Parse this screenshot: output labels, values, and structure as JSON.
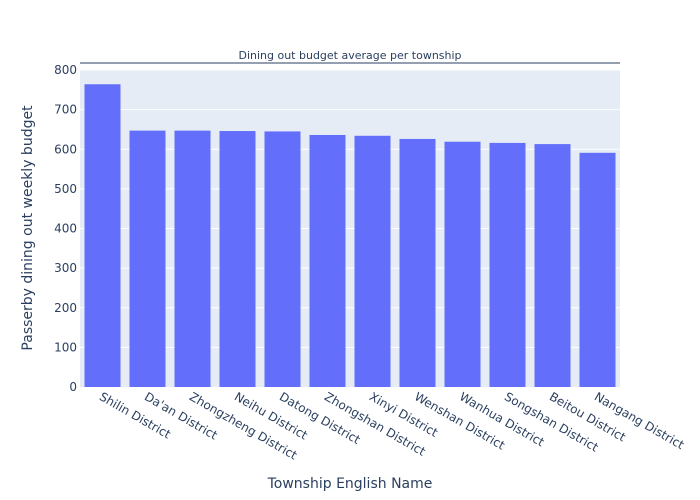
{
  "chart_data": {
    "type": "bar",
    "title": "Dining out budget average per township",
    "xlabel": "Township English Name",
    "ylabel": "Passerby dining out weekly budget",
    "categories": [
      "Shilin District",
      "Da'an District",
      "Zhongzheng District",
      "Neihu District",
      "Datong District",
      "Zhongshan District",
      "Xinyi District",
      "Wenshan District",
      "Wanhua District",
      "Songshan District",
      "Beitou District",
      "Nangang District"
    ],
    "values": [
      764,
      647,
      647,
      646,
      645,
      636,
      634,
      626,
      619,
      616,
      613,
      591
    ],
    "ylim": [
      0,
      800
    ],
    "yticks": [
      "0",
      "100",
      "200",
      "300",
      "400",
      "500",
      "600",
      "700",
      "800"
    ],
    "grid": true,
    "colors": {
      "bar": "#636efa",
      "plot_bg": "#e5ecf6",
      "grid": "#ffffff",
      "text": "#2a3f5f",
      "title_rule": "#2a3f5f"
    }
  }
}
